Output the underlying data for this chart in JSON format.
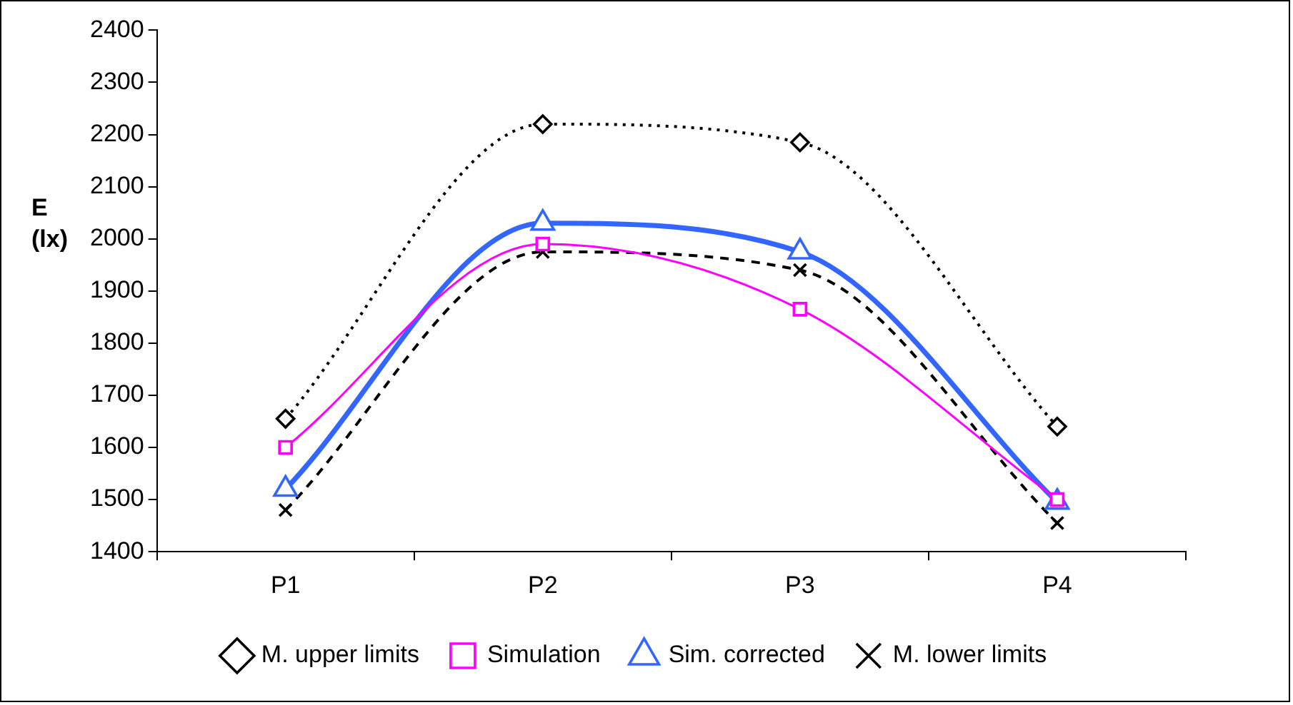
{
  "chart_data": {
    "type": "line",
    "ylabel": "E (lx)",
    "categories": [
      "P1",
      "P2",
      "P3",
      "P4"
    ],
    "series": [
      {
        "name": "M. upper limits",
        "color": "#000000",
        "values": [
          1655,
          2220,
          2185,
          1640
        ],
        "marker": "diamond",
        "line_style": "dotted"
      },
      {
        "name": "Simulation",
        "color": "#ff00ff",
        "values": [
          1600,
          1990,
          1865,
          1500
        ],
        "marker": "square",
        "line_style": "solid"
      },
      {
        "name": "Sim. corrected",
        "color": "#3366ff",
        "values": [
          1520,
          2030,
          1975,
          1495
        ],
        "marker": "triangle",
        "line_style": "solid"
      },
      {
        "name": "M. lower limits",
        "color": "#000000",
        "values": [
          1480,
          1975,
          1940,
          1455
        ],
        "marker": "cross",
        "line_style": "dashed"
      }
    ],
    "ylim": [
      1400,
      2400
    ],
    "yticks": [
      1400,
      1500,
      1600,
      1700,
      1800,
      1900,
      2000,
      2100,
      2200,
      2300,
      2400
    ],
    "grid": false,
    "legend": "bottom"
  }
}
